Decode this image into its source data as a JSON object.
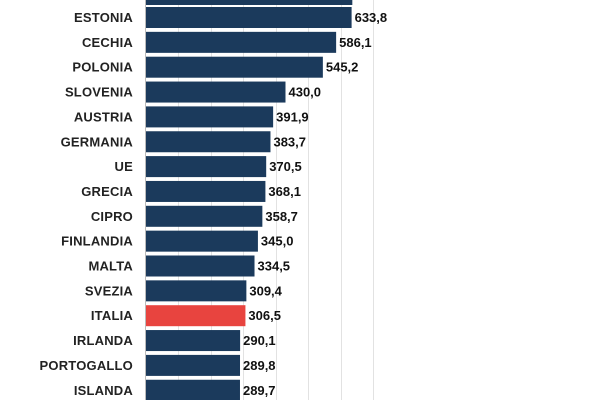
{
  "chart_data": {
    "type": "bar",
    "orientation": "horizontal",
    "title": "",
    "xlabel": "",
    "ylabel": "",
    "xlim": [
      0,
      700
    ],
    "grid": true,
    "legend": "none",
    "categories": [
      "ESTONIA",
      "CECHIA",
      "POLONIA",
      "SLOVENIA",
      "AUSTRIA",
      "GERMANIA",
      "UE",
      "GRECIA",
      "CIPRO",
      "FINLANDIA",
      "MALTA",
      "SVEZIA",
      "ITALIA",
      "IRLANDA",
      "PORTOGALLO",
      "ISLANDA"
    ],
    "values": [
      633.8,
      586.1,
      545.2,
      430.0,
      391.9,
      383.7,
      370.5,
      368.1,
      358.7,
      345.0,
      334.5,
      309.4,
      306.5,
      290.1,
      289.8,
      289.7
    ],
    "value_labels": [
      "633,8",
      "586,1",
      "545,2",
      "430,0",
      "391,9",
      "383,7",
      "370,5",
      "368,1",
      "358,7",
      "345,0",
      "334,5",
      "309,4",
      "306,5",
      "290,1",
      "289,8",
      "289,7"
    ],
    "colors": {
      "default": "#1b3a5c",
      "highlight": "#e8443f",
      "highlight_category": "ITALIA"
    }
  }
}
